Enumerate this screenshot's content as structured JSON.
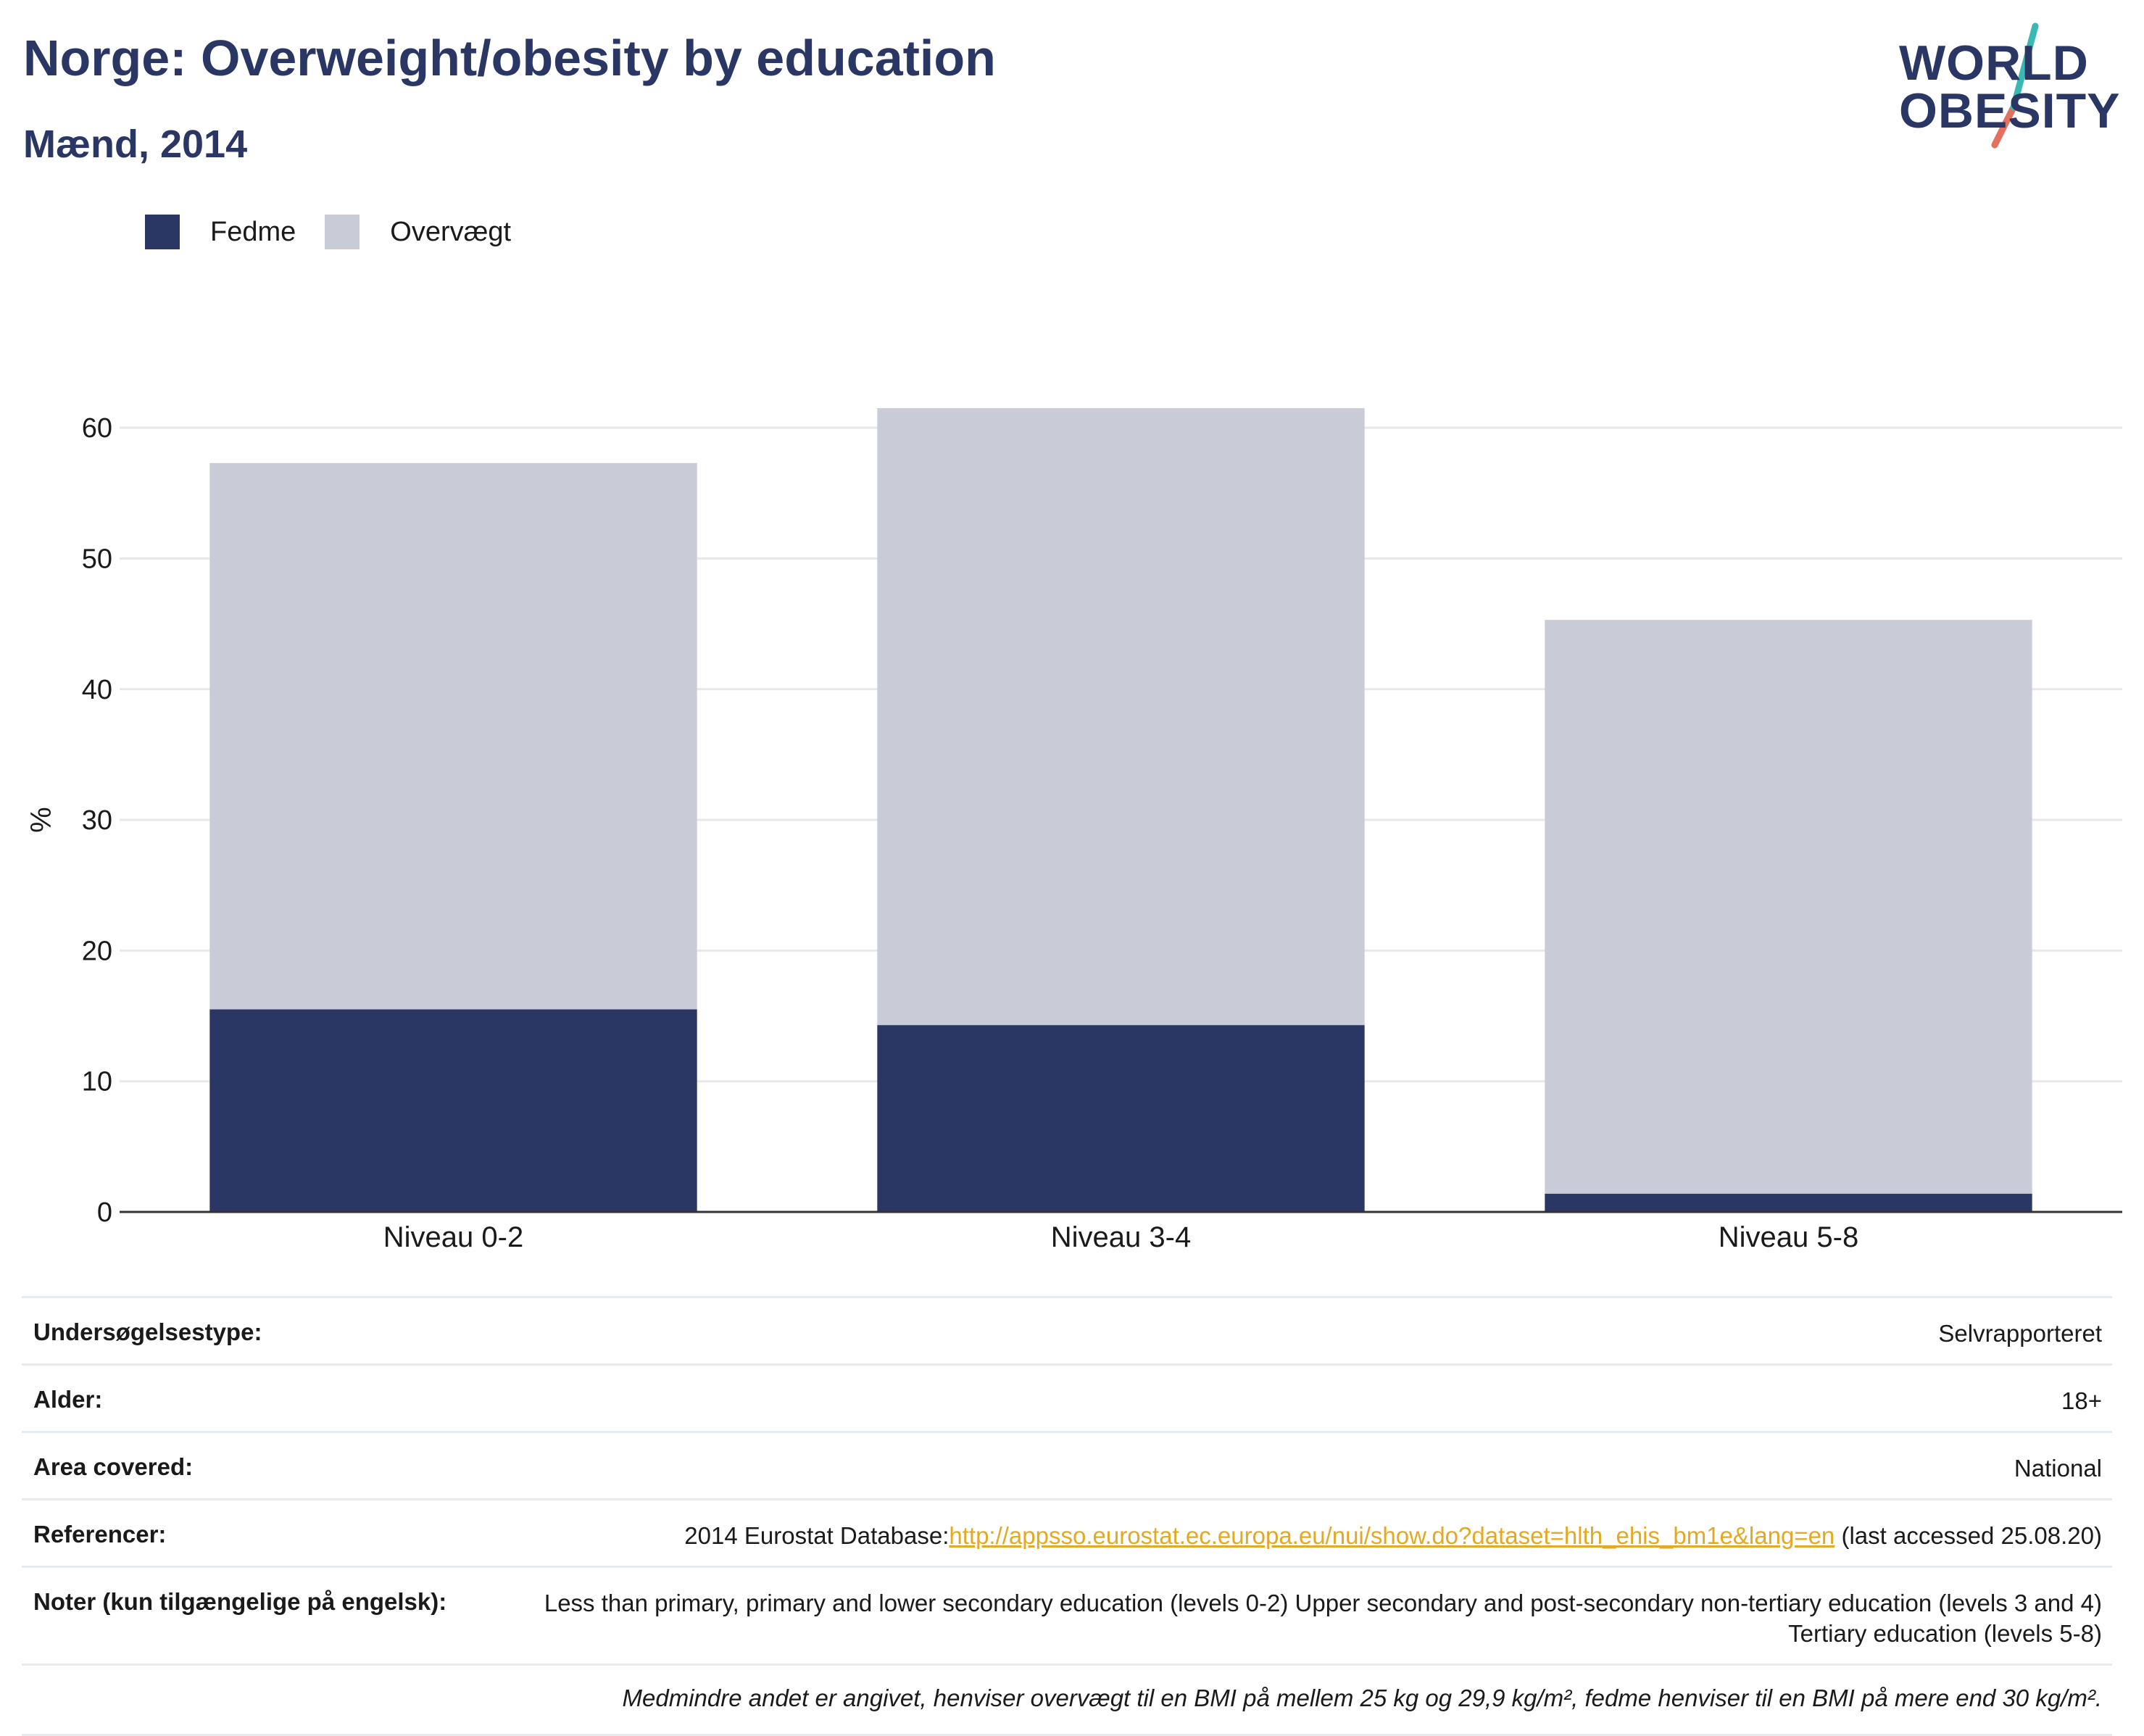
{
  "header": {
    "title": "Norge: Overweight/obesity by education",
    "subtitle": "Mænd, 2014"
  },
  "logo": {
    "line1": "WORLD",
    "line2": "OBESITY"
  },
  "colors": {
    "fedme": "#2a3664",
    "overvaegt": "#c9ccd7",
    "grid": "#e8e8ec",
    "axis": "#333333",
    "link": "#e3a924"
  },
  "legend": [
    {
      "label": "Fedme",
      "color": "#2a3664"
    },
    {
      "label": "Overvægt",
      "color": "#c9ccd7"
    }
  ],
  "chart_data": {
    "type": "bar",
    "stacked": true,
    "categories": [
      "Niveau 0-2",
      "Niveau 3-4",
      "Niveau 5-8"
    ],
    "series": [
      {
        "name": "Fedme",
        "values": [
          15.5,
          14.3,
          1.4
        ]
      },
      {
        "name": "Overvægt",
        "values": [
          41.8,
          47.2,
          43.9
        ]
      }
    ],
    "ylabel": "%",
    "ylim": [
      0,
      65
    ],
    "yticks": [
      0,
      10,
      20,
      30,
      40,
      50,
      60
    ],
    "grid": true,
    "legend_position": "top-left"
  },
  "meta": {
    "survey_label": "Undersøgelsestype:",
    "survey_value": "Selvrapporteret",
    "age_label": "Alder:",
    "age_value": "18+",
    "area_label": "Area covered:",
    "area_value": "National",
    "ref_label": "Referencer:",
    "ref_prefix": "2014 Eurostat Database:",
    "ref_link": "http://appsso.eurostat.ec.europa.eu/nui/show.do?dataset=hlth_ehis_bm1e&lang=en",
    "ref_suffix": " (last accessed 25.08.20)",
    "notes_label": "Noter (kun tilgængelige på engelsk):",
    "notes_value": "Less than primary, primary and lower secondary education (levels 0-2) Upper secondary and post-secondary non-tertiary education (levels 3 and 4) Tertiary education (levels 5-8)",
    "footnote": "Medmindre andet er angivet, henviser overvægt til en BMI på mellem 25 kg og 29,9 kg/m², fedme henviser til en BMI på mere end 30 kg/m²."
  }
}
